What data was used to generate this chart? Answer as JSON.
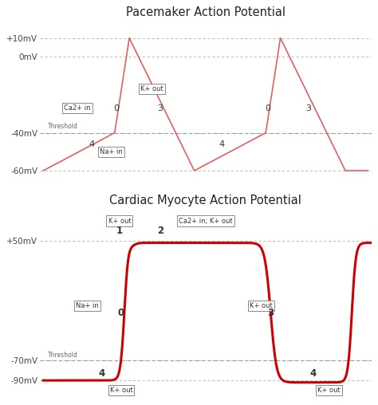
{
  "pm_title": "Pacemaker Action Potential",
  "pm_yticks": [
    -60,
    -40,
    0,
    10
  ],
  "pm_ylabels": [
    "-60mV",
    "-40mV",
    "0mV",
    "+10mV"
  ],
  "pm_ylim": [
    -68,
    18
  ],
  "pm_threshold": -40,
  "pm_threshold_label": "Threshold",
  "pm_color": "#e06060",
  "pm_dotted_color": "#b0b0b0",
  "pm_teal_color": "#70b0a0",
  "cm_title": "Cardiac Myocyte Action Potential",
  "cm_yticks": [
    -90,
    -70,
    50
  ],
  "cm_ylabels": [
    "-90mV",
    "-70mV",
    "+50mV"
  ],
  "cm_ylim": [
    -108,
    80
  ],
  "cm_threshold": -70,
  "cm_threshold_label": "Threshold",
  "cm_color": "#cc0000",
  "cm_dotted_color": "#b0b0b0",
  "cm_teal_color": "#70b0a0"
}
